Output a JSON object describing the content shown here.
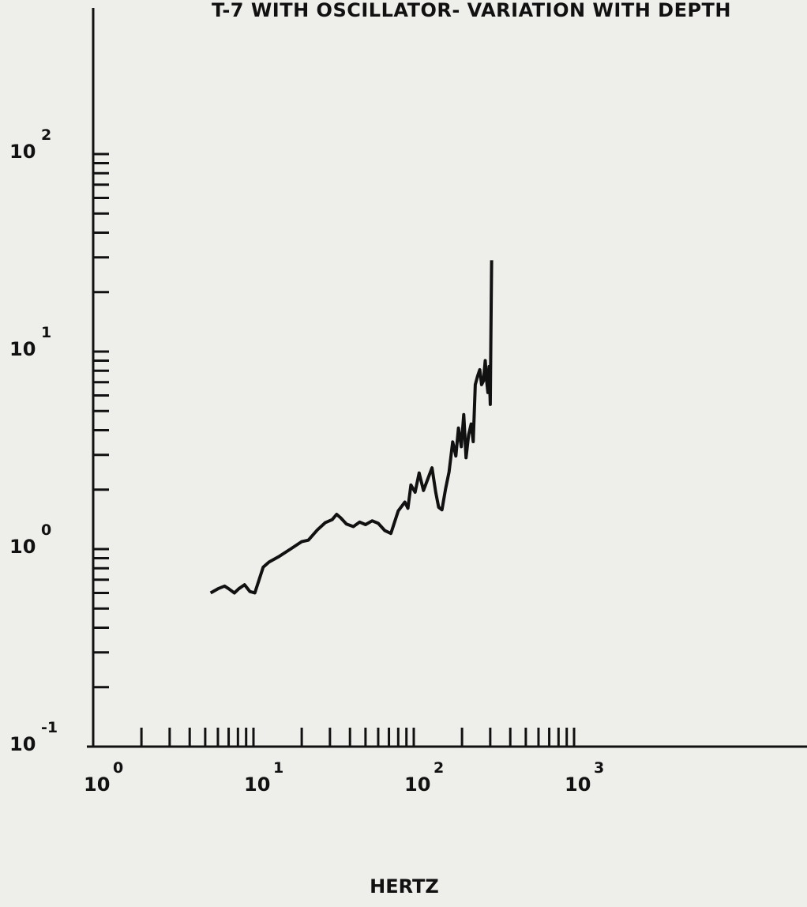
{
  "chart_data": {
    "type": "line",
    "title": "T-7 WITH OSCILLATOR- VARIATION WITH DEPTH",
    "xlabel": "HERTZ",
    "ylabel": "",
    "x_scale": "log",
    "y_scale": "log",
    "xlim": [
      1,
      10000
    ],
    "ylim": [
      0.1,
      1000
    ],
    "grid": false,
    "x_ticks": [
      {
        "base": "10",
        "exp": "0",
        "value": 1
      },
      {
        "base": "10",
        "exp": "1",
        "value": 10
      },
      {
        "base": "10",
        "exp": "2",
        "value": 100
      },
      {
        "base": "10",
        "exp": "3",
        "value": 1000
      }
    ],
    "y_ticks": [
      {
        "base": "10",
        "exp": "-1",
        "value": 0.1
      },
      {
        "base": "10",
        "exp": "0",
        "value": 1
      },
      {
        "base": "10",
        "exp": "1",
        "value": 10
      },
      {
        "base": "10",
        "exp": "2",
        "value": 100
      }
    ],
    "x_minor_ticks_decades": [
      1,
      10,
      100
    ],
    "y_minor_ticks_decades": [
      0.1,
      1,
      10
    ],
    "series": [
      {
        "x": [
          5.4,
          6.0,
          6.6,
          7.0,
          7.6,
          8.1,
          8.8,
          9.5,
          10.2,
          11.5,
          12.5,
          14.5,
          17.0,
          20.0,
          22.0,
          25.0,
          28.0,
          31.0,
          33.0,
          35.0,
          38.0,
          42.0,
          46.0,
          50.0,
          55.0,
          60.0,
          66.0,
          72.0,
          80.0,
          88.0,
          92.0,
          96.0,
          102.0,
          108.0,
          115.0,
          122.0,
          130.0,
          137.0,
          143.0,
          150.0,
          158.0,
          166.0,
          175.0,
          183.0,
          190.0,
          198.0,
          205.0,
          212.0,
          220.0,
          228.0,
          235.0,
          242.0,
          250.0,
          258.0,
          265.0,
          272.0,
          279.0,
          285.0,
          290.0,
          295.0,
          300.0,
          303.0,
          306.0
        ],
        "y": [
          0.6,
          0.63,
          0.65,
          0.63,
          0.6,
          0.63,
          0.66,
          0.61,
          0.6,
          0.81,
          0.86,
          0.92,
          1.0,
          1.09,
          1.11,
          1.25,
          1.36,
          1.41,
          1.5,
          1.44,
          1.34,
          1.3,
          1.37,
          1.33,
          1.39,
          1.35,
          1.24,
          1.2,
          1.56,
          1.73,
          1.61,
          2.11,
          1.94,
          2.43,
          1.98,
          2.25,
          2.58,
          1.94,
          1.63,
          1.58,
          2.02,
          2.46,
          3.49,
          2.96,
          4.1,
          3.3,
          4.8,
          2.9,
          3.8,
          4.3,
          3.5,
          6.8,
          7.5,
          8.1,
          6.8,
          7.1,
          9.0,
          7.1,
          6.2,
          8.4,
          5.4,
          12.2,
          29.0
        ]
      }
    ]
  }
}
